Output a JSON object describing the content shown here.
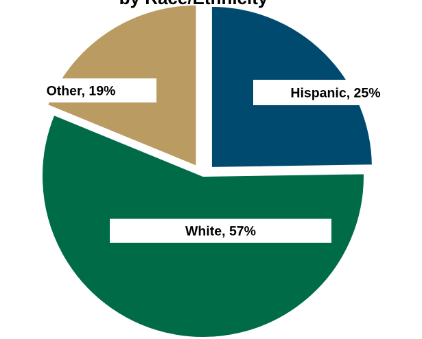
{
  "chart_data": {
    "type": "pie",
    "title": "by Race/Ethnicity",
    "slices": [
      {
        "label": "Hispanic, 25%",
        "category": "Hispanic",
        "value": 25,
        "color": "#004A70"
      },
      {
        "label": "White, 57%",
        "category": "White",
        "value": 57,
        "color": "#006B47"
      },
      {
        "label": "Other, 19%",
        "category": "Other",
        "value": 19,
        "color": "#BA9B61"
      }
    ],
    "exploded": true,
    "legend": "none",
    "label_style": "white boxes with bold black text"
  }
}
